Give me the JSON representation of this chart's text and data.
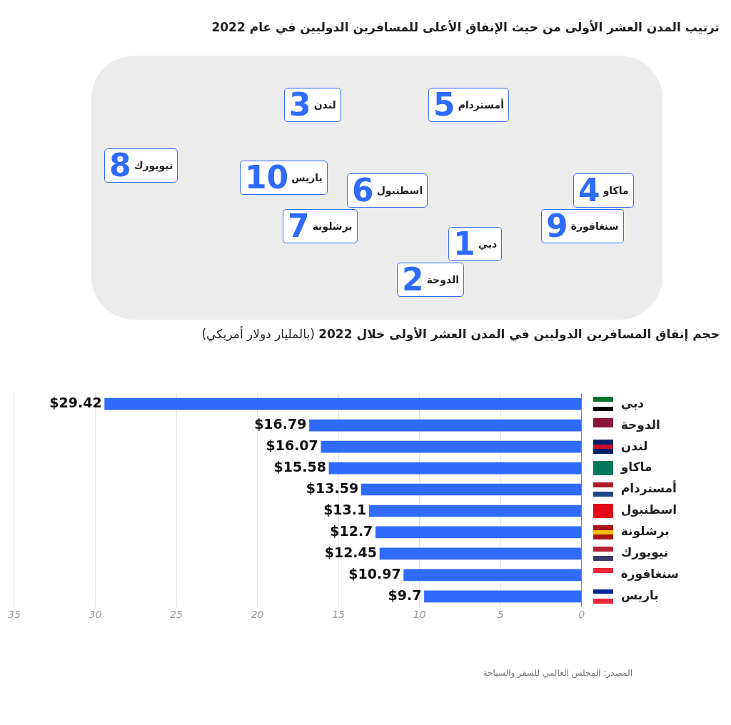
{
  "chart_data": [
    {
      "type": "other",
      "title": "ترتيب المدن العشر الأولى من حيث الإنفاق الأعلى للمسافرين الدوليين في عام 2022",
      "categories": [
        "دبي",
        "الدوحة",
        "لندن",
        "ماكاو",
        "أمستردام",
        "اسطنبول",
        "برشلونة",
        "نيويورك",
        "سنغافورة",
        "باريس"
      ],
      "annotations": [
        "1",
        "2",
        "3",
        "4",
        "5",
        "6",
        "7",
        "8",
        "9",
        "10"
      ],
      "color": "#2f6bff"
    },
    {
      "type": "bar",
      "orientation": "horizontal",
      "title": "حجم إنفاق المسافرين الدوليين في المدن العشر الأولى خلال 2022",
      "subtitle": "(بالمليار دولار أمريكي)",
      "categories": [
        "دبي",
        "الدوحة",
        "لندن",
        "ماكاو",
        "أمستردام",
        "اسطنبول",
        "برشلونة",
        "نيويورك",
        "سنغافورة",
        "باريس"
      ],
      "values": [
        29.42,
        16.79,
        16.07,
        15.58,
        13.59,
        13.1,
        12.7,
        12.45,
        10.97,
        9.7
      ],
      "value_labels": [
        "$29.42",
        "$16.79",
        "$16.07",
        "$15.58",
        "$13.59",
        "$13.1",
        "$12.7",
        "$12.45",
        "$10.97",
        "$9.7"
      ],
      "color": "#2f6bff",
      "xlim": [
        35,
        0
      ],
      "xticks": [
        35,
        30,
        25,
        20,
        15,
        10,
        5,
        0
      ],
      "grid": "x",
      "legend": false,
      "annotations": [
        "المصدر: المجلس العالمي للسفر والسياحة"
      ]
    }
  ]
}
